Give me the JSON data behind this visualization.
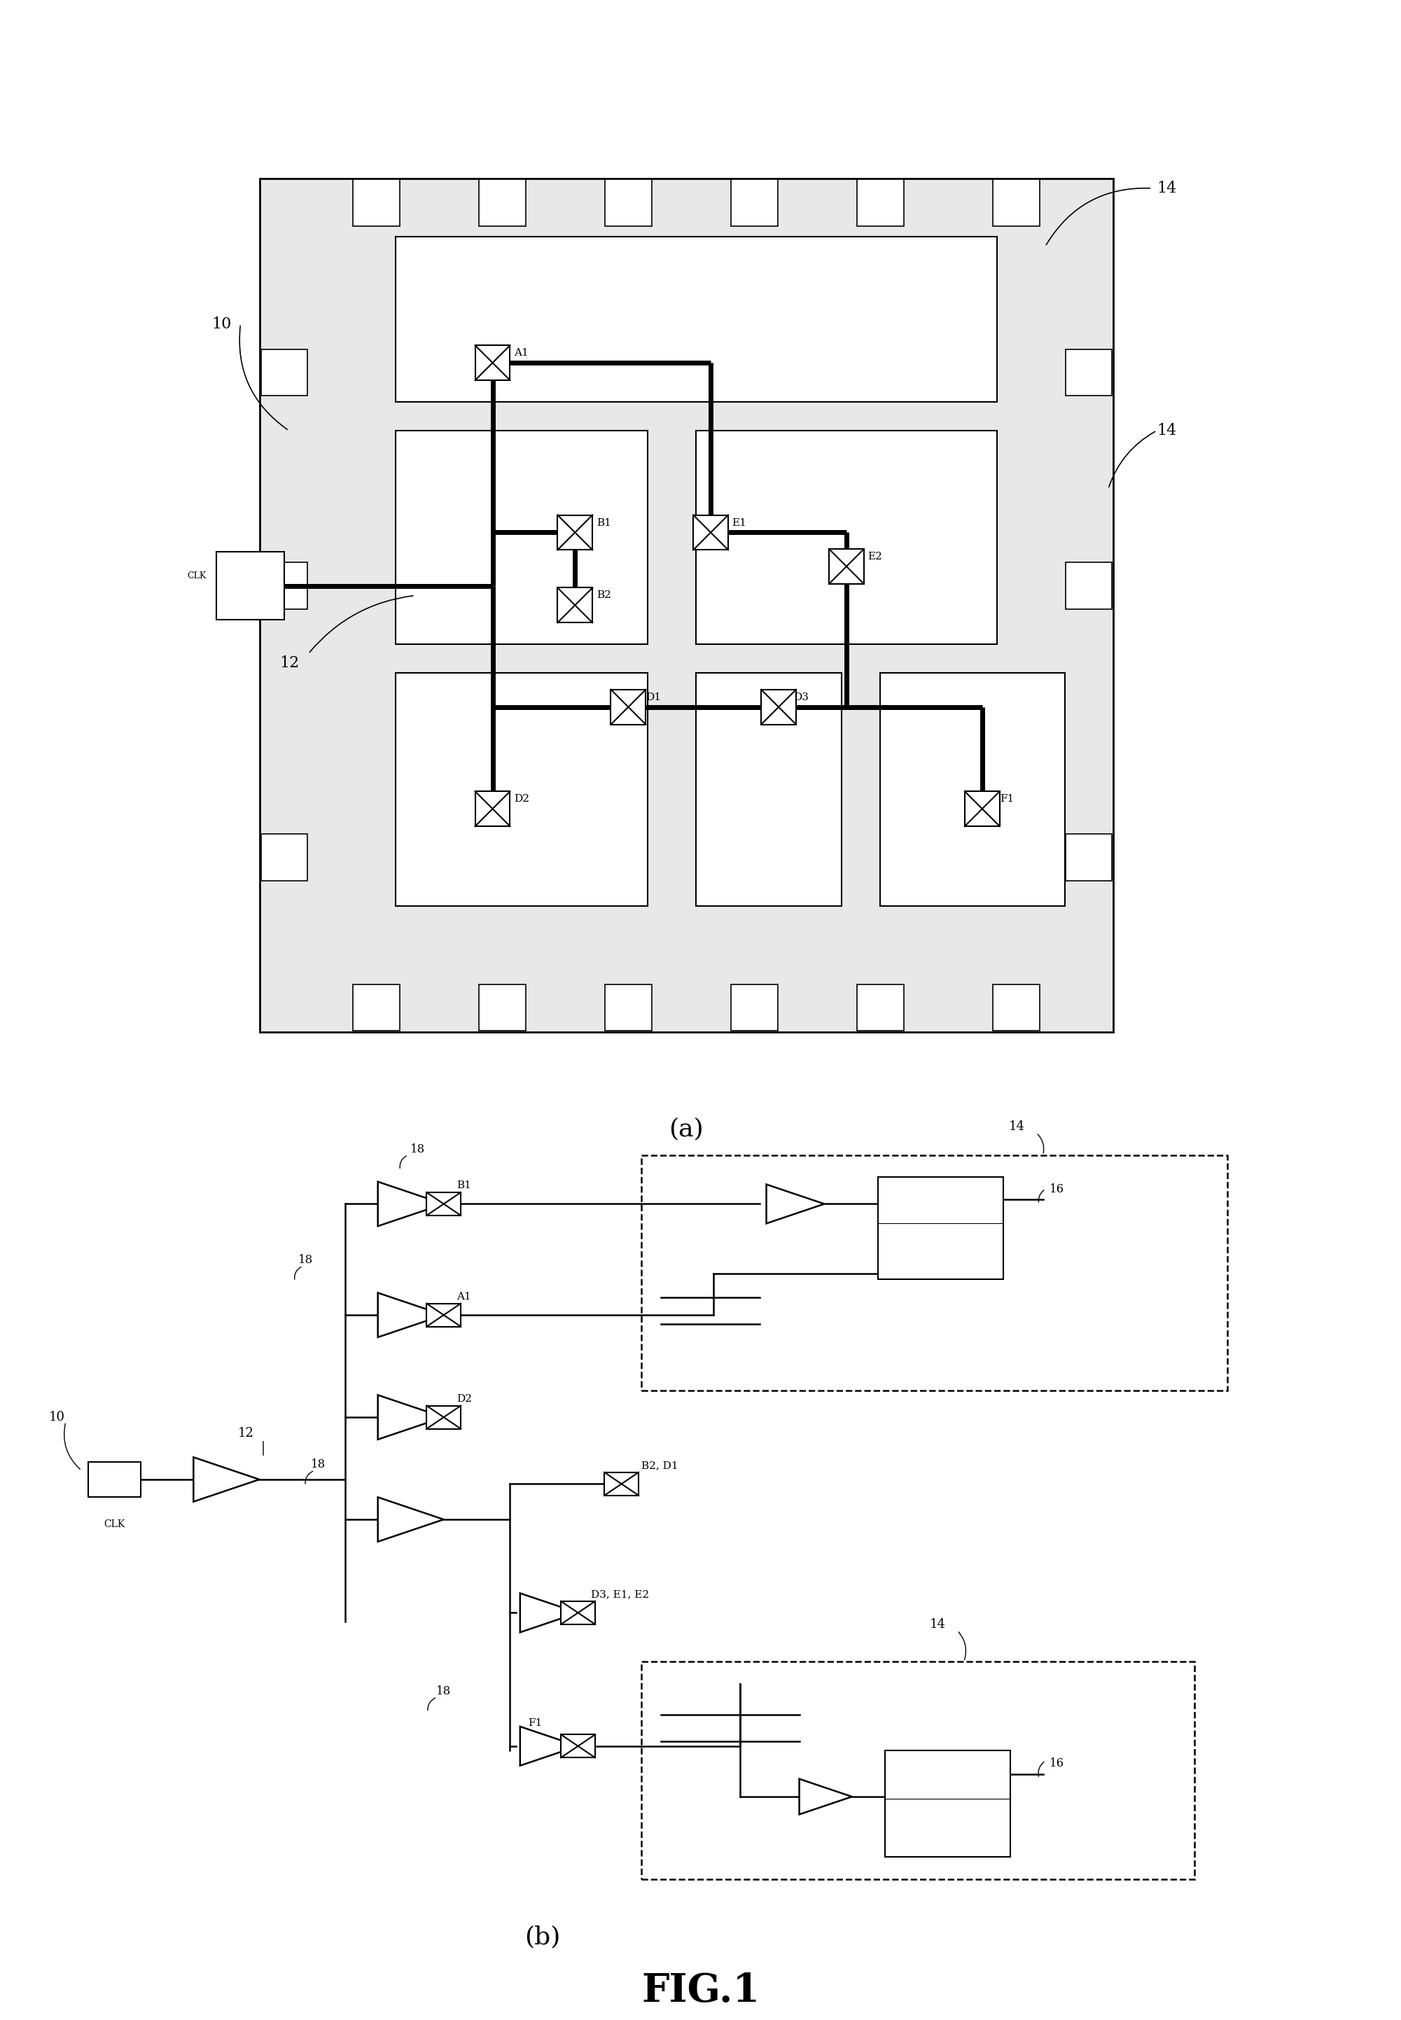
{
  "fig_width": 20.01,
  "fig_height": 28.85,
  "bg_color": "#ffffff",
  "title": "FIG.1",
  "title_fontsize": 40,
  "label_a": "(a)",
  "label_b": "(b)",
  "label_fontsize": 26
}
